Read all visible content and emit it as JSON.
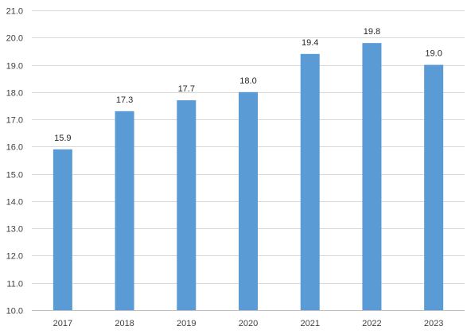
{
  "chart_data": {
    "type": "bar",
    "categories": [
      "2017",
      "2018",
      "2019",
      "2020",
      "2021",
      "2022",
      "2023"
    ],
    "values": [
      15.9,
      17.3,
      17.7,
      18.0,
      19.4,
      19.8,
      19.0
    ],
    "data_labels": [
      "15.9",
      "17.3",
      "17.7",
      "18.0",
      "19.4",
      "19.8",
      "19.0"
    ],
    "y_ticks": [
      "10.0",
      "11.0",
      "12.0",
      "13.0",
      "14.0",
      "15.0",
      "16.0",
      "17.0",
      "18.0",
      "19.0",
      "20.0",
      "21.0"
    ],
    "ylim": [
      10,
      21
    ],
    "grid": true,
    "legend": "none",
    "title": "",
    "xlabel": "",
    "ylabel": "",
    "colors": {
      "bar": "#5b9bd5"
    }
  }
}
